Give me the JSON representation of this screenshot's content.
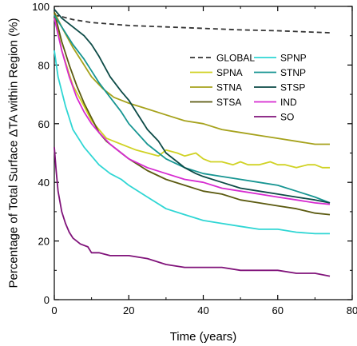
{
  "chart_data": {
    "type": "line",
    "xlabel": "Time (years)",
    "ylabel": "Percentage of Total Surface ΔTA within Region (%)",
    "xlim": [
      0,
      80
    ],
    "ylim": [
      0,
      100
    ],
    "xticks": [
      0,
      20,
      40,
      60,
      80
    ],
    "yticks": [
      0,
      20,
      40,
      60,
      80,
      100
    ],
    "grid": false,
    "legend_position": "upper-right",
    "series": [
      {
        "name": "GLOBAL",
        "color": "#333333",
        "dash": "dashed",
        "x": [
          0,
          2,
          5,
          10,
          15,
          20,
          30,
          40,
          50,
          60,
          70,
          74
        ],
        "y": [
          97,
          96.5,
          95.5,
          94.5,
          94,
          93.5,
          93,
          92.5,
          92,
          91.7,
          91.2,
          91
        ]
      },
      {
        "name": "SPNA",
        "color": "#d0d224",
        "dash": "solid",
        "x": [
          0,
          2,
          5,
          8,
          10,
          12,
          14,
          16,
          18,
          20,
          22,
          25,
          28,
          30,
          33,
          35,
          38,
          40,
          42,
          45,
          48,
          50,
          52,
          55,
          58,
          60,
          62,
          65,
          68,
          70,
          72,
          74
        ],
        "y": [
          98,
          85,
          73,
          66,
          61,
          58,
          55,
          54,
          53,
          52,
          51,
          50,
          49,
          51,
          50,
          49,
          50,
          48,
          47,
          47,
          46,
          47,
          46,
          46,
          47,
          46,
          46,
          45,
          46,
          46,
          45,
          45
        ]
      },
      {
        "name": "STNA",
        "color": "#a6a21c",
        "dash": "solid",
        "x": [
          0,
          2,
          5,
          8,
          10,
          13,
          16,
          20,
          25,
          30,
          35,
          40,
          45,
          50,
          55,
          60,
          65,
          70,
          74
        ],
        "y": [
          98,
          93,
          86,
          80,
          76,
          72,
          69,
          67,
          65,
          63,
          61,
          60,
          58,
          57,
          56,
          55,
          54,
          53,
          53
        ]
      },
      {
        "name": "STSA",
        "color": "#5b5a10",
        "dash": "solid",
        "x": [
          0,
          2,
          4,
          6,
          8,
          10,
          12,
          14,
          16,
          18,
          20,
          25,
          30,
          35,
          40,
          45,
          50,
          55,
          60,
          65,
          70,
          74
        ],
        "y": [
          98,
          88,
          80,
          73,
          67,
          62,
          57,
          54,
          52,
          50,
          48,
          44,
          41,
          39,
          37,
          36,
          34,
          33,
          32,
          31,
          29.5,
          29
        ]
      },
      {
        "name": "SPNP",
        "color": "#2fd6d4",
        "dash": "solid",
        "x": [
          0,
          1,
          3,
          5,
          8,
          10,
          12,
          15,
          18,
          20,
          25,
          30,
          35,
          40,
          45,
          50,
          55,
          60,
          65,
          70,
          74
        ],
        "y": [
          85,
          76,
          66,
          58,
          52,
          49,
          46,
          43,
          41,
          39,
          35,
          31,
          29,
          27,
          26,
          25,
          24,
          24,
          23,
          22.5,
          22.5
        ]
      },
      {
        "name": "STNP",
        "color": "#169592",
        "dash": "solid",
        "x": [
          0,
          2,
          5,
          8,
          10,
          12,
          15,
          18,
          20,
          25,
          30,
          35,
          40,
          45,
          50,
          55,
          60,
          65,
          70,
          74
        ],
        "y": [
          97,
          93,
          87,
          82,
          78,
          74,
          69,
          64,
          60,
          53,
          48,
          45,
          43,
          42,
          41,
          40,
          39,
          37,
          35,
          33
        ]
      },
      {
        "name": "STSP",
        "color": "#0c4a46",
        "dash": "solid",
        "x": [
          0,
          2,
          5,
          8,
          10,
          12,
          15,
          18,
          20,
          22,
          25,
          28,
          30,
          33,
          35,
          38,
          40,
          45,
          50,
          55,
          60,
          65,
          70,
          74
        ],
        "y": [
          99,
          96,
          93,
          90,
          87,
          83,
          76,
          71,
          68,
          64,
          58,
          54,
          50,
          47,
          45,
          43,
          42,
          40,
          38,
          37,
          36,
          35,
          34,
          33
        ]
      },
      {
        "name": "IND",
        "color": "#d62ad0",
        "dash": "solid",
        "x": [
          0,
          2,
          4,
          6,
          8,
          10,
          12,
          15,
          18,
          20,
          25,
          30,
          35,
          40,
          45,
          50,
          55,
          60,
          65,
          70,
          74
        ],
        "y": [
          96,
          85,
          76,
          69,
          64,
          60,
          57,
          53,
          50,
          48,
          45,
          43,
          41,
          40,
          38,
          37,
          36,
          35,
          34,
          33,
          32.5
        ]
      },
      {
        "name": "SO",
        "color": "#80137a",
        "dash": "solid",
        "x": [
          0,
          0.5,
          1,
          2,
          3,
          4,
          5,
          7,
          9,
          10,
          12,
          15,
          18,
          20,
          25,
          30,
          35,
          40,
          45,
          50,
          55,
          60,
          65,
          70,
          74
        ],
        "y": [
          52,
          44,
          37,
          30,
          26,
          23,
          21,
          19,
          18,
          16,
          16,
          15,
          15,
          15,
          14,
          12,
          11,
          11,
          11,
          10,
          10,
          10,
          9,
          9,
          8
        ]
      }
    ]
  }
}
